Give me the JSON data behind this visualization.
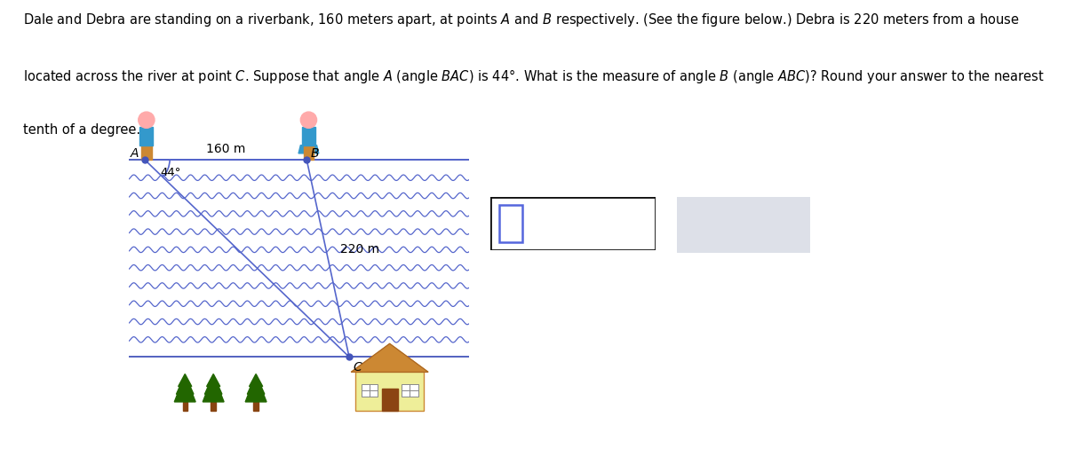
{
  "figure_bg": "#ffffff",
  "river_line_color": "#4455bb",
  "wave_color": "#5566cc",
  "line_color": "#5566cc",
  "dot_color": "#4455bb",
  "body_color": "#3399cc",
  "skin_color": "#ffaaaa",
  "pants_color": "#cc8833",
  "tree_green": "#226600",
  "tree_trunk": "#884411",
  "house_wall": "#eeee99",
  "house_roof": "#cc8833",
  "house_door": "#8B4513",
  "house_border": "#cc8833",
  "input_inner_color": "#5566dd",
  "input_box_border": "#222222",
  "button_bg": "#dde0e8",
  "button_border": "#9999bb",
  "button_text": "#446688",
  "AB_label": "160 m",
  "BC_label": "220 m",
  "angle_label": "44°",
  "label_A": "A",
  "label_B": "B",
  "label_C": "C",
  "text_line1": "Dale and Debra are standing on a riverbank, 160 meters apart, at points $A$ and $B$ respectively. (See the figure below.) Debra is 220 meters from a house",
  "text_line2": "located across the river at point $C$. Suppose that angle $A$ (angle $BAC$) is 44°. What is the measure of angle $B$ (angle $ABC$)? Round your answer to the nearest",
  "text_line3": "tenth of a degree."
}
